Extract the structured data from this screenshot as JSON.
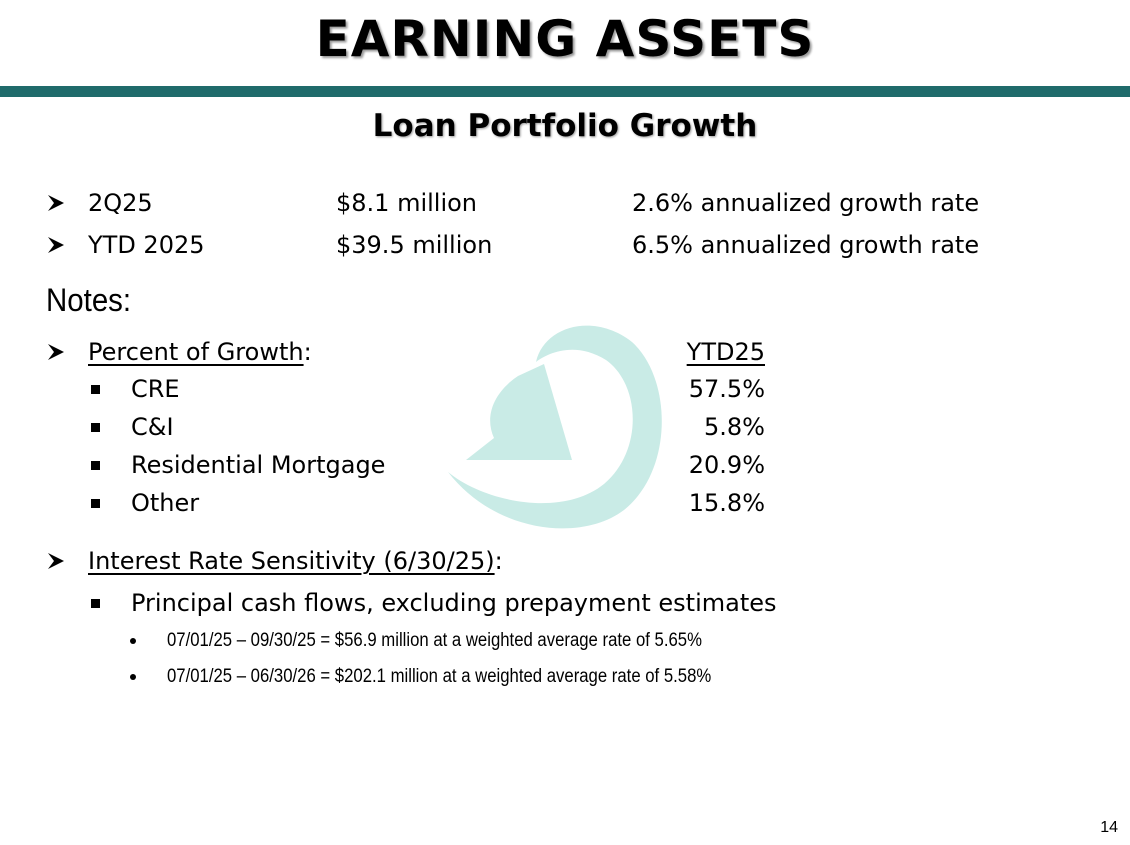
{
  "header": {
    "title": "EARNING ASSETS",
    "subtitle": "Loan Portfolio Growth"
  },
  "growth": [
    {
      "period": "2Q25",
      "amount": "$8.1 million",
      "rate": "2.6% annualized growth rate"
    },
    {
      "period": "YTD 2025",
      "amount": "$39.5 million",
      "rate": "6.5% annualized growth rate"
    }
  ],
  "notes": {
    "heading": "Notes:",
    "percent_of_growth": {
      "label": "Percent of Growth",
      "suffix": ":",
      "column_header": "YTD25",
      "items": [
        {
          "name": "CRE",
          "value": "57.5%"
        },
        {
          "name": "C&I",
          "value": "5.8%"
        },
        {
          "name": "Residential Mortgage",
          "value": "20.9%"
        },
        {
          "name": "Other",
          "value": "15.8%"
        }
      ]
    },
    "interest_rate": {
      "label": "Interest Rate Sensitivity (6/30/25)",
      "suffix": ":",
      "cash_flows": "Principal cash flows, excluding prepayment estimates",
      "details": [
        "07/01/25 – 09/30/25 = $56.9 million at a weighted average rate of 5.65%",
        "07/01/25 – 06/30/26 = $202.1 million at a weighted average rate of 5.58%"
      ]
    }
  },
  "colors": {
    "rule": "#1f6b6b",
    "logo": "#c9ebe6"
  },
  "watermark": {
    "icon": "circular-arrow-logo-icon"
  },
  "page_number": "14"
}
